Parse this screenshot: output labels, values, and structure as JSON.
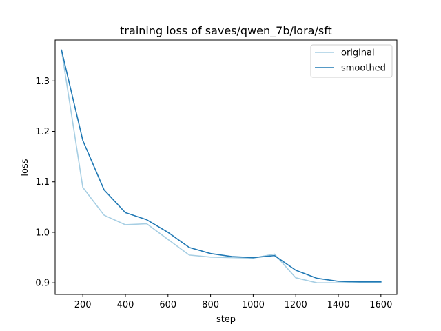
{
  "chart_data": {
    "type": "line",
    "title": "training loss of saves/qwen_7b/lora/sft",
    "xlabel": "step",
    "ylabel": "loss",
    "xlim": [
      70,
      1675
    ],
    "ylim": [
      0.877,
      1.381
    ],
    "xticks": [
      200,
      400,
      600,
      800,
      1000,
      1200,
      1400,
      1600
    ],
    "xtick_labels": [
      "200",
      "400",
      "600",
      "800",
      "1000",
      "1200",
      "1400",
      "1600"
    ],
    "yticks": [
      0.9,
      1.0,
      1.1,
      1.2,
      1.3
    ],
    "ytick_labels": [
      "0.9",
      "1.0",
      "1.1",
      "1.2",
      "1.3"
    ],
    "grid": false,
    "legend_position": "top-right",
    "x": [
      100,
      200,
      300,
      400,
      500,
      600,
      700,
      800,
      900,
      1000,
      1100,
      1200,
      1300,
      1400,
      1500,
      1600
    ],
    "series": [
      {
        "name": "original",
        "color": "#a6cee3",
        "values": [
          1.361,
          1.089,
          1.034,
          1.015,
          1.017,
          0.986,
          0.955,
          0.951,
          0.95,
          0.949,
          0.957,
          0.91,
          0.9,
          0.9,
          0.901,
          0.901
        ]
      },
      {
        "name": "smoothed",
        "color": "#1f78b4",
        "values": [
          1.361,
          1.182,
          1.084,
          1.039,
          1.025,
          1.0,
          0.97,
          0.958,
          0.952,
          0.95,
          0.954,
          0.925,
          0.909,
          0.903,
          0.902,
          0.902
        ]
      }
    ]
  }
}
